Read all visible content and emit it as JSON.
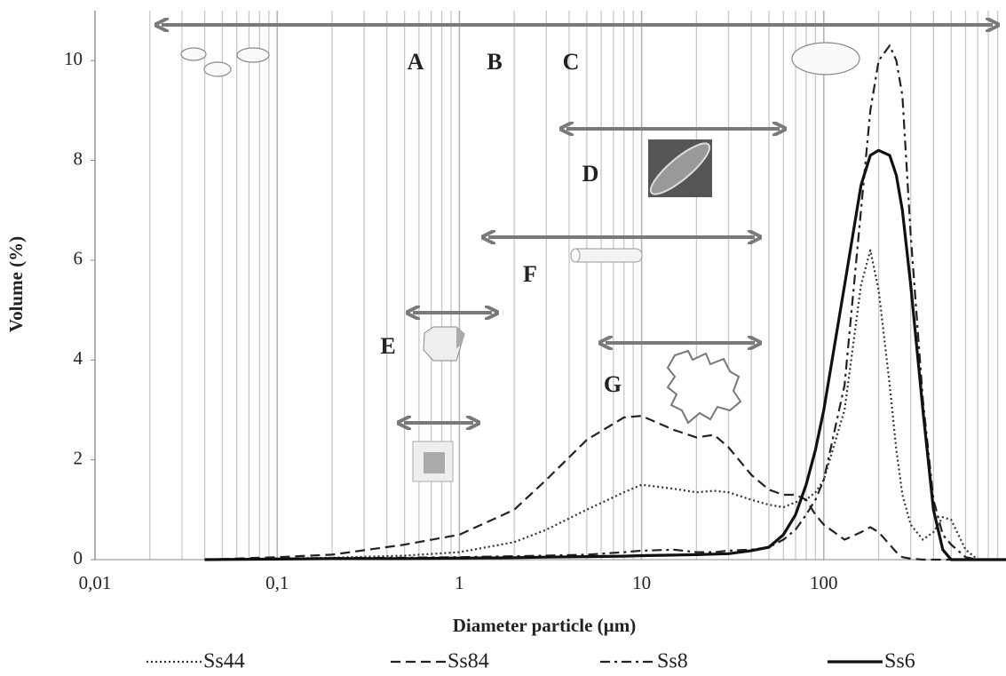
{
  "chart_data": {
    "type": "line",
    "x_label": "Diameter particle (µm)",
    "y_label": "Volume (%)",
    "xscale": "log",
    "grid": true,
    "xlim": [
      0.01,
      1000
    ],
    "ylim": [
      0,
      11
    ],
    "xticks": [
      {
        "value": 0.01,
        "label": "0,01"
      },
      {
        "value": 0.1,
        "label": "0,1"
      },
      1,
      10,
      100
    ],
    "x_minor_grid": [
      0.02,
      0.03,
      0.04,
      0.05,
      0.06,
      0.07,
      0.08,
      0.09,
      0.2,
      0.3,
      0.4,
      0.5,
      0.6,
      0.7,
      0.8,
      0.9,
      2,
      3,
      4,
      5,
      6,
      7,
      8,
      9,
      20,
      30,
      40,
      50,
      60,
      70,
      80,
      90,
      200,
      300,
      400,
      500,
      600,
      700,
      800,
      900
    ],
    "yticks": [
      0,
      2,
      4,
      6,
      8,
      10
    ],
    "annotations": [
      "A",
      "B",
      "C",
      "D",
      "E",
      "F",
      "G"
    ],
    "x": [
      0.04,
      0.1,
      0.2,
      0.5,
      1,
      2,
      3,
      5,
      8,
      10,
      15,
      20,
      25,
      30,
      40,
      50,
      60,
      70,
      80,
      90,
      100,
      130,
      160,
      180,
      200,
      230,
      250,
      270,
      300,
      350,
      400,
      450,
      500,
      600,
      700,
      1000
    ],
    "series": [
      {
        "name": "Ss44",
        "color": "#333333",
        "style": "dotted",
        "values": [
          0,
          0.02,
          0.04,
          0.08,
          0.15,
          0.35,
          0.6,
          1.0,
          1.35,
          1.5,
          1.42,
          1.35,
          1.38,
          1.35,
          1.2,
          1.1,
          1.05,
          1.15,
          1.2,
          1.35,
          1.6,
          3,
          5.5,
          6.2,
          5.4,
          3.5,
          2.2,
          1.3,
          0.7,
          0.4,
          0.55,
          0.85,
          0.8,
          0.2,
          0,
          0
        ]
      },
      {
        "name": "Ss84",
        "color": "#222222",
        "style": "dashed",
        "values": [
          0,
          0.05,
          0.1,
          0.3,
          0.5,
          1.0,
          1.6,
          2.4,
          2.85,
          2.88,
          2.6,
          2.45,
          2.5,
          2.25,
          1.7,
          1.4,
          1.3,
          1.3,
          1.2,
          0.9,
          0.7,
          0.4,
          0.55,
          0.65,
          0.55,
          0.3,
          0.15,
          0.05,
          0.02,
          0,
          0,
          0,
          0,
          0,
          0,
          0
        ]
      },
      {
        "name": "Ss8",
        "color": "#222222",
        "style": "dashdot",
        "values": [
          0,
          0.02,
          0.03,
          0.04,
          0.05,
          0.07,
          0.08,
          0.1,
          0.15,
          0.18,
          0.2,
          0.15,
          0.15,
          0.18,
          0.2,
          0.25,
          0.4,
          0.6,
          0.9,
          1.2,
          1.6,
          3.5,
          7,
          9,
          10,
          10.3,
          10,
          9.3,
          6.5,
          3.2,
          1.2,
          0.5,
          0.3,
          0.05,
          0,
          0
        ]
      },
      {
        "name": "Ss6",
        "color": "#111111",
        "style": "solid",
        "values": [
          0,
          0.01,
          0.02,
          0.02,
          0.03,
          0.04,
          0.05,
          0.06,
          0.07,
          0.08,
          0.09,
          0.1,
          0.11,
          0.12,
          0.18,
          0.25,
          0.5,
          0.9,
          1.5,
          2.2,
          3,
          5.5,
          7.5,
          8.1,
          8.2,
          8.1,
          7.7,
          7,
          5.5,
          3,
          1,
          0.2,
          0,
          0,
          0,
          0
        ]
      }
    ]
  }
}
